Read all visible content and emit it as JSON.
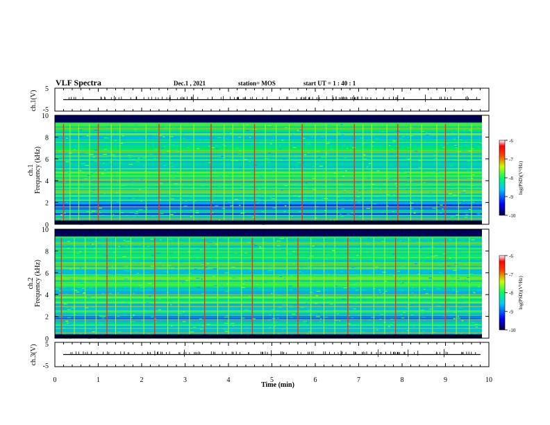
{
  "header": {
    "title": "VLF Spectra",
    "date": "Dec.1 , 2021",
    "station": "station= MOS",
    "start": "start  UT =  1 : 40 : 1"
  },
  "colors": {
    "background": "#ffffff",
    "axis": "#000000",
    "spectrogram_floor": "#000060"
  },
  "chart_data": [
    {
      "type": "line",
      "name": "ch1-waveform",
      "ylabel": "ch.1(V)",
      "xlim": [
        0,
        10
      ],
      "ylim": [
        -5,
        5
      ],
      "yticks": [
        "5",
        "-5"
      ],
      "baseline": 0
    },
    {
      "type": "heatmap",
      "name": "ch1-spectrogram",
      "ylabel_channel": "ch.1",
      "ylabel": "Frequency (kHz)",
      "xlim": [
        0,
        10
      ],
      "ylim": [
        0,
        10
      ],
      "yticks": [
        "0",
        "2",
        "4",
        "6",
        "8",
        "10"
      ],
      "colorbar": {
        "label": "log(PSD)(V²/Hz)",
        "ticks": [
          "-6",
          "-7",
          "-8",
          "-9",
          "-10"
        ],
        "range": [
          -10,
          -6
        ]
      },
      "persistent_lines_khz": [
        0.5,
        0.8,
        1.1,
        1.6,
        2.2,
        2.6,
        3.0,
        3.3,
        3.6,
        4.0,
        5.1,
        5.9,
        6.6,
        7.5,
        8.3,
        8.8
      ],
      "sferic_times_min": [
        0.2,
        0.35,
        0.55,
        0.8,
        1.0,
        1.3,
        1.5,
        2.1,
        2.4,
        2.65,
        2.9,
        3.2,
        3.6,
        3.9,
        4.1,
        4.35,
        4.6,
        4.85,
        5.1,
        5.4,
        5.7,
        6.0,
        6.25,
        6.5,
        6.9,
        7.1,
        7.3,
        7.65,
        7.9,
        8.2,
        8.45,
        8.8,
        9.0,
        9.3,
        9.6
      ]
    },
    {
      "type": "heatmap",
      "name": "ch2-spectrogram",
      "ylabel_channel": "ch.2",
      "ylabel": "Frequency (kHz)",
      "xlim": [
        0,
        10
      ],
      "ylim": [
        0,
        10
      ],
      "yticks": [
        "0",
        "2",
        "4",
        "6",
        "8",
        "10"
      ],
      "colorbar": {
        "label": "log(PSD)(V²/Hz)",
        "ticks": [
          "-6",
          "-7",
          "-8",
          "-9",
          "-10"
        ],
        "range": [
          -10,
          -6
        ]
      },
      "persistent_lines_khz": [
        0.5,
        0.9,
        1.2,
        1.7,
        2.1,
        2.5,
        2.9,
        3.3,
        3.7,
        4.0,
        4.9,
        5.8,
        6.7,
        7.4,
        8.2,
        8.7
      ],
      "sferic_times_min": [
        0.15,
        0.45,
        0.7,
        0.95,
        1.2,
        1.4,
        1.75,
        2.05,
        2.3,
        2.6,
        2.85,
        3.1,
        3.45,
        3.75,
        4.0,
        4.3,
        4.55,
        4.8,
        5.05,
        5.35,
        5.6,
        5.9,
        6.2,
        6.45,
        6.75,
        7.05,
        7.35,
        7.6,
        7.85,
        8.15,
        8.4,
        8.7,
        9.0,
        9.25,
        9.55
      ]
    },
    {
      "type": "line",
      "name": "ch3-waveform",
      "ylabel": "ch.3(V)",
      "xlabel": "Time  (min)",
      "xlim": [
        0,
        10
      ],
      "ylim": [
        -5,
        5
      ],
      "yticks": [
        "5",
        "-5"
      ],
      "xticks": [
        "0",
        "1",
        "2",
        "3",
        "4",
        "5",
        "6",
        "7",
        "8",
        "9",
        "10"
      ],
      "baseline": 0
    }
  ]
}
